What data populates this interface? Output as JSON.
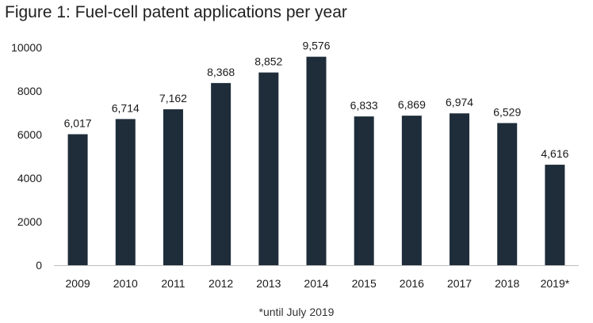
{
  "title": "Figure 1: Fuel-cell patent applications per year",
  "footnote": "*until July 2019",
  "colors": {
    "bar": "#1f2d3a",
    "axis": "#bfbfbf",
    "text": "#1a1a1a"
  },
  "chart_data": {
    "type": "bar",
    "title": "Figure 1: Fuel-cell patent applications per year",
    "xlabel": "",
    "ylabel": "",
    "categories": [
      "2009",
      "2010",
      "2011",
      "2012",
      "2013",
      "2014",
      "2015",
      "2016",
      "2017",
      "2018",
      "2019*"
    ],
    "values": [
      6017,
      6714,
      7162,
      8368,
      8852,
      9576,
      6833,
      6869,
      6974,
      6529,
      4616
    ],
    "data_labels": [
      "6,017",
      "6,714",
      "7,162",
      "8,368",
      "8,852",
      "9,576",
      "6,833",
      "6,869",
      "6,974",
      "6,529",
      "4,616"
    ],
    "ylim": [
      0,
      10000
    ],
    "yticks": [
      0,
      2000,
      4000,
      6000,
      8000,
      10000
    ],
    "ytick_labels": [
      "0",
      "2000",
      "4000",
      "6000",
      "8000",
      "10000"
    ],
    "grid": false,
    "legend": "none"
  }
}
